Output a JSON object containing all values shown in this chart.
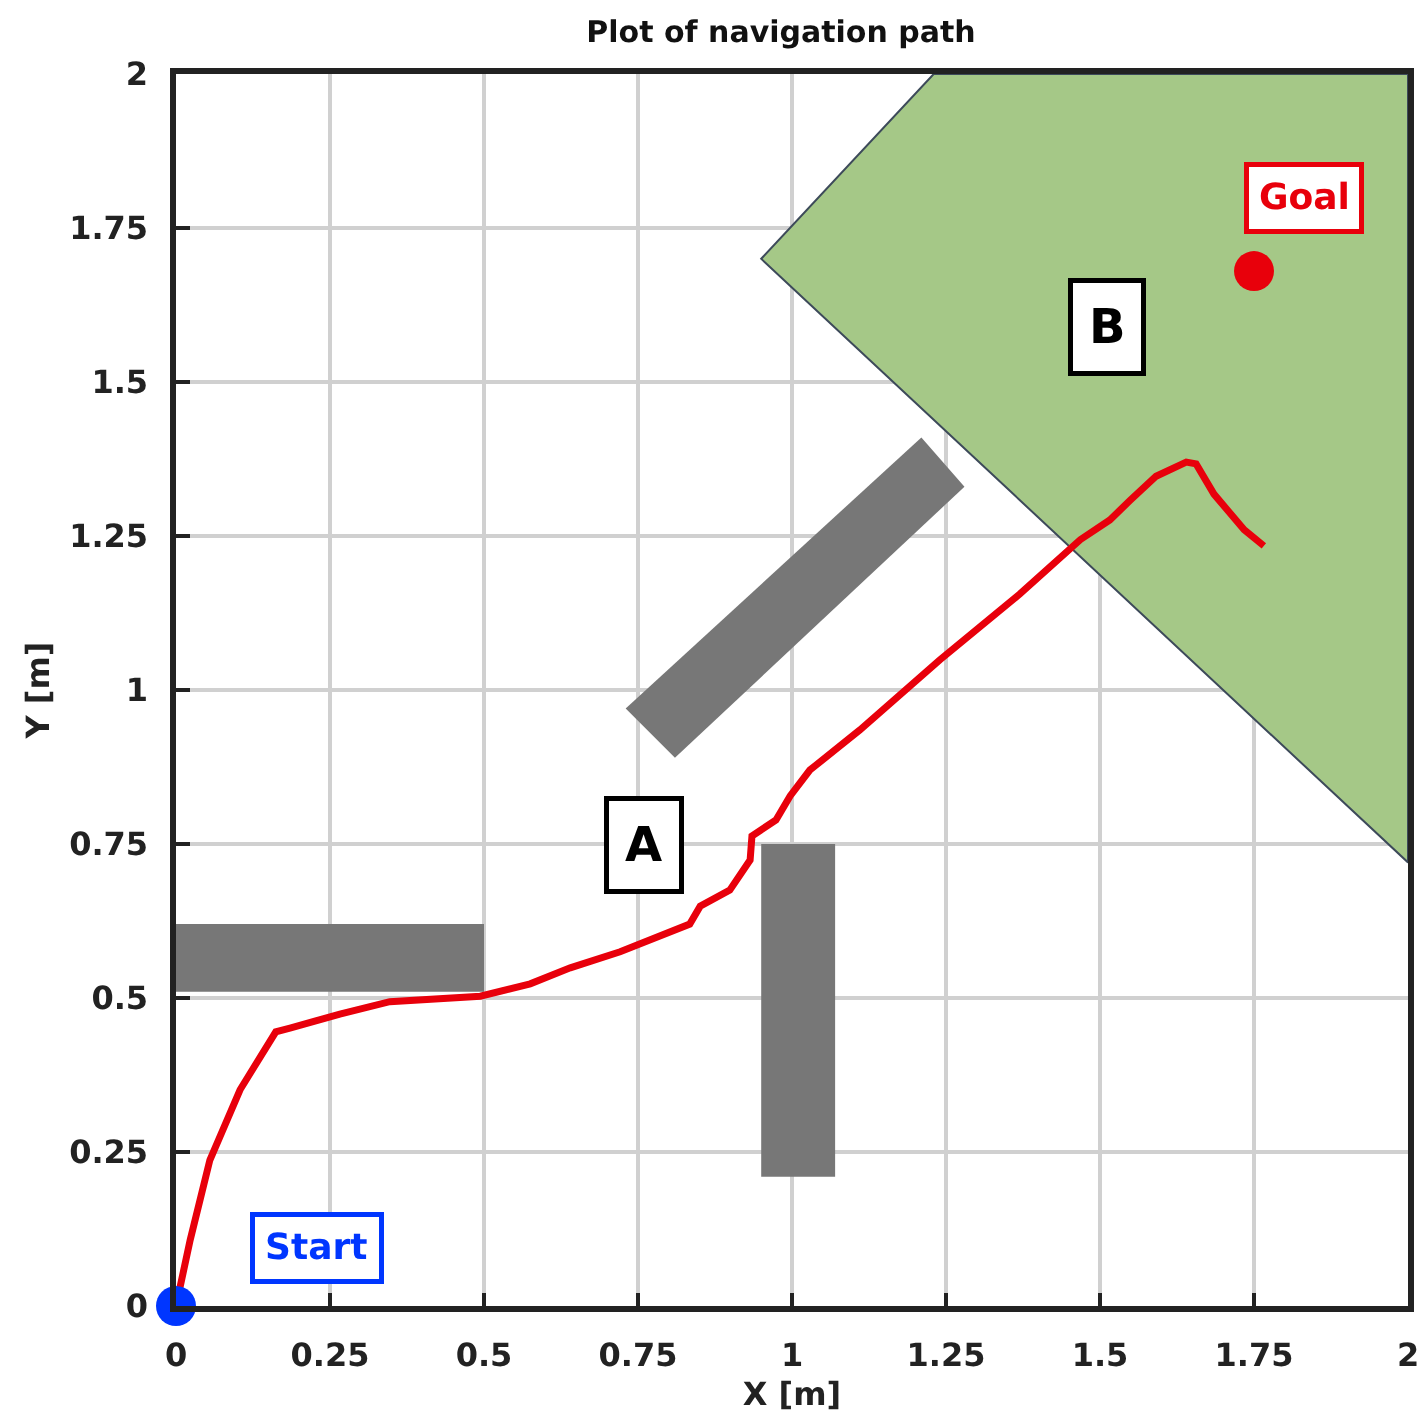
{
  "chart_data": {
    "type": "line",
    "title": "Plot of navigation path",
    "xlabel": "X [m]",
    "ylabel": "Y [m]",
    "xlim": [
      0,
      2
    ],
    "ylim": [
      0,
      2
    ],
    "xticks": [
      0,
      0.25,
      0.5,
      0.75,
      1,
      1.25,
      1.5,
      1.75,
      2
    ],
    "yticks": [
      0,
      0.25,
      0.5,
      0.75,
      1,
      1.25,
      1.5,
      1.75,
      2
    ],
    "grid": true,
    "series": [
      {
        "type": "area",
        "color": "#a5c887",
        "x": [
          1.23,
          0.95,
          2,
          2,
          1.23
        ],
        "values": [
          2,
          1.7,
          0.72,
          2,
          2
        ]
      },
      {
        "type": "area",
        "color": "#777777",
        "x": [
          0,
          0.5,
          0.5,
          0,
          0
        ],
        "values": [
          0.51,
          0.51,
          0.62,
          0.62,
          0.51
        ]
      },
      {
        "type": "area",
        "color": "#777777",
        "x": [
          0.95,
          1.07,
          1.07,
          0.95,
          0.95
        ],
        "values": [
          0.21,
          0.21,
          0.75,
          0.75,
          0.21
        ]
      },
      {
        "type": "area",
        "color": "#777777",
        "x": [
          0.73,
          0.81,
          1.28,
          1.21,
          0.73
        ],
        "values": [
          0.97,
          0.89,
          1.33,
          1.41,
          0.97
        ]
      },
      {
        "color": "#e8000b",
        "marker": "none",
        "x": [
          0,
          0.023,
          0.055,
          0.104,
          0.162,
          0.185,
          0.266,
          0.347,
          0.494,
          0.575,
          0.64,
          0.721,
          0.834,
          0.851,
          0.899,
          0.932,
          0.935,
          0.974,
          0.997,
          1.029,
          1.11,
          1.24,
          1.37,
          1.468,
          1.516,
          1.549,
          1.591,
          1.64,
          1.656,
          1.685,
          1.734,
          1.766
        ],
        "values": [
          0,
          0.107,
          0.237,
          0.351,
          0.445,
          0.451,
          0.474,
          0.494,
          0.503,
          0.523,
          0.549,
          0.575,
          0.62,
          0.649,
          0.675,
          0.724,
          0.763,
          0.789,
          0.828,
          0.87,
          0.935,
          1.049,
          1.156,
          1.244,
          1.276,
          1.308,
          1.347,
          1.37,
          1.367,
          1.318,
          1.26,
          1.234
        ]
      },
      {
        "type": "scatter",
        "color": "#0036ff",
        "marker": "circle",
        "x": [
          0
        ],
        "values": [
          0
        ]
      },
      {
        "type": "scatter",
        "color": "#e8000b",
        "marker": "circle",
        "x": [
          1.75
        ],
        "values": [
          1.68
        ]
      }
    ],
    "annotations": [
      "A",
      "B",
      "Goal",
      "Start"
    ]
  }
}
